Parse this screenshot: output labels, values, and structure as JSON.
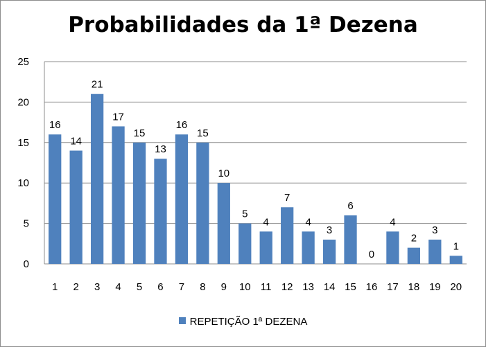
{
  "chart_data": {
    "type": "bar",
    "title": "Probabilidades da 1ª Dezena",
    "xlabel": "",
    "ylabel": "",
    "categories": [
      "1",
      "2",
      "3",
      "4",
      "5",
      "6",
      "7",
      "8",
      "9",
      "10",
      "11",
      "12",
      "13",
      "14",
      "15",
      "16",
      "17",
      "18",
      "19",
      "20"
    ],
    "series": [
      {
        "name": "REPETIÇÃO 1ª DEZENA",
        "values": [
          16,
          14,
          21,
          17,
          15,
          13,
          16,
          15,
          10,
          5,
          4,
          7,
          4,
          3,
          6,
          0,
          4,
          2,
          3,
          1
        ],
        "color": "#4f81bd"
      }
    ],
    "ylim": [
      0,
      25
    ],
    "yticks": [
      "0",
      "5",
      "10",
      "15",
      "20",
      "25"
    ],
    "grid": true,
    "data_labels": true,
    "legend": "bottom"
  }
}
